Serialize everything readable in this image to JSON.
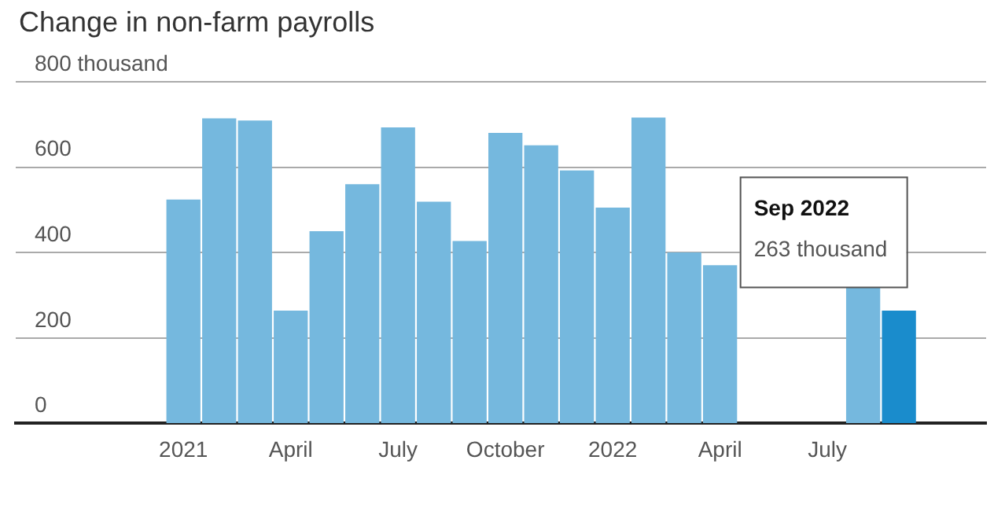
{
  "chart_data": {
    "type": "bar",
    "title": "Change in non-farm payrolls",
    "categories": [
      "2021",
      null,
      null,
      "April",
      null,
      null,
      "July",
      null,
      null,
      "October",
      null,
      null,
      "2022",
      null,
      null,
      "April",
      null,
      null,
      "July",
      null,
      null
    ],
    "values": [
      523,
      713,
      708,
      263,
      449,
      559,
      692,
      518,
      426,
      679,
      650,
      591,
      504,
      715,
      399,
      369,
      null,
      null,
      null,
      317,
      263
    ],
    "colors": [
      "#75b8de",
      "#75b8de",
      "#75b8de",
      "#75b8de",
      "#75b8de",
      "#75b8de",
      "#75b8de",
      "#75b8de",
      "#75b8de",
      "#75b8de",
      "#75b8de",
      "#75b8de",
      "#75b8de",
      "#75b8de",
      "#75b8de",
      "#75b8de",
      "#75b8de",
      "#75b8de",
      "#75b8de",
      "#75b8de",
      "#1a8ccc"
    ],
    "ylim": [
      0,
      800
    ],
    "yticks": [
      0,
      200,
      400,
      600,
      {
        "value": 800,
        "label": "800 thousand"
      }
    ],
    "grid": "y",
    "annotations": [
      "Sep 2022",
      "263 thousand"
    ]
  }
}
